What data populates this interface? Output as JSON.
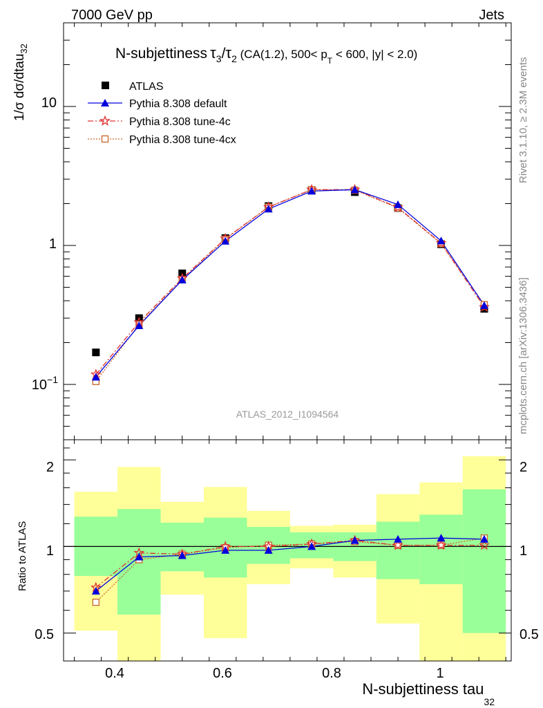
{
  "header": {
    "left": "7000 GeV pp",
    "right": "Jets"
  },
  "side_text": {
    "rivet": "Rivet 3.1.10, ≥ 2.3M events",
    "mcplots": "mcplots.cern.ch [arXiv:1306.3436]"
  },
  "chart_data": {
    "type": "line",
    "title": {
      "main": "N-subjettiness",
      "tau": "τ",
      "sub3": "3",
      "slash": "/",
      "sub2": "2",
      "rest1": " (CA(1.2), 500< p",
      "subT": "T",
      "rest2": " < 600, |y| < 2.0)"
    },
    "watermark": "ATLAS_2012_I1094564",
    "xlabel": "N-subjettiness tau",
    "xlabel_sub": "32",
    "ylabel": "1/σ dσ/dtau",
    "ylabel_sub": "32",
    "ratio_ylabel": "Ratio to ATLAS",
    "x_ticks": [
      "0.4",
      "0.6",
      "0.8",
      "1"
    ],
    "y_ticks_main": {
      "ten": "10",
      "one": "1",
      "tenth_base": "10",
      "tenth_exp": "−1"
    },
    "y_ticks_ratio": [
      "2",
      "1",
      "0.5"
    ],
    "xlim": [
      0.3,
      1.13
    ],
    "ylim_main": [
      0.04,
      40
    ],
    "ylim_ratio": [
      0.4,
      2.35
    ],
    "y_scale": "log",
    "legend_placement": "top-left",
    "bin_edges": [
      0.32,
      0.4,
      0.48,
      0.56,
      0.64,
      0.72,
      0.8,
      0.88,
      0.96,
      1.04,
      1.12
    ],
    "x": [
      0.36,
      0.44,
      0.52,
      0.6,
      0.68,
      0.76,
      0.84,
      0.92,
      1.0,
      1.08
    ],
    "data": {
      "name": "ATLAS",
      "color": "#000000",
      "values": [
        0.17,
        0.3,
        0.63,
        1.13,
        1.92,
        2.5,
        2.42,
        1.86,
        1.02,
        0.35
      ]
    },
    "series": [
      {
        "name": "Pythia 8.308 default",
        "color": "#0000dd",
        "marker": "triangle",
        "dash": "solid",
        "values": [
          0.113,
          0.265,
          0.565,
          1.075,
          1.83,
          2.46,
          2.52,
          1.97,
          1.08,
          0.37
        ],
        "ratio": [
          0.7,
          0.92,
          0.93,
          0.97,
          0.97,
          1.0,
          1.05,
          1.06,
          1.07,
          1.06
        ]
      },
      {
        "name": "Pythia 8.308 tune-4c",
        "color": "#e03030",
        "marker": "star",
        "dash": "dashdot",
        "values": [
          0.118,
          0.28,
          0.58,
          1.12,
          1.89,
          2.52,
          2.52,
          1.88,
          1.04,
          0.36
        ],
        "ratio": [
          0.72,
          0.95,
          0.94,
          1.0,
          1.0,
          1.02,
          1.05,
          1.01,
          1.01,
          1.01
        ]
      },
      {
        "name": "Pythia 8.308 tune-4cx",
        "color": "#c86428",
        "marker": "square",
        "dash": "dotted",
        "values": [
          0.105,
          0.27,
          0.57,
          1.11,
          1.89,
          2.52,
          2.5,
          1.86,
          1.03,
          0.375
        ],
        "ratio": [
          0.64,
          0.9,
          0.94,
          0.99,
          1.01,
          1.02,
          1.04,
          1.01,
          1.01,
          1.07
        ]
      }
    ],
    "band_green": [
      [
        0.79,
        1.27
      ],
      [
        0.58,
        1.35
      ],
      [
        0.82,
        1.21
      ],
      [
        0.78,
        1.26
      ],
      [
        0.87,
        1.17
      ],
      [
        0.91,
        1.12
      ],
      [
        0.89,
        1.12
      ],
      [
        0.77,
        1.22
      ],
      [
        0.74,
        1.29
      ],
      [
        0.5,
        1.58
      ]
    ],
    "band_yellow": [
      [
        0.51,
        1.55
      ],
      [
        0.3,
        1.89
      ],
      [
        0.68,
        1.43
      ],
      [
        0.48,
        1.61
      ],
      [
        0.74,
        1.33
      ],
      [
        0.84,
        1.18
      ],
      [
        0.78,
        1.19
      ],
      [
        0.54,
        1.52
      ],
      [
        0.3,
        1.67
      ],
      [
        0.3,
        2.06
      ]
    ]
  }
}
